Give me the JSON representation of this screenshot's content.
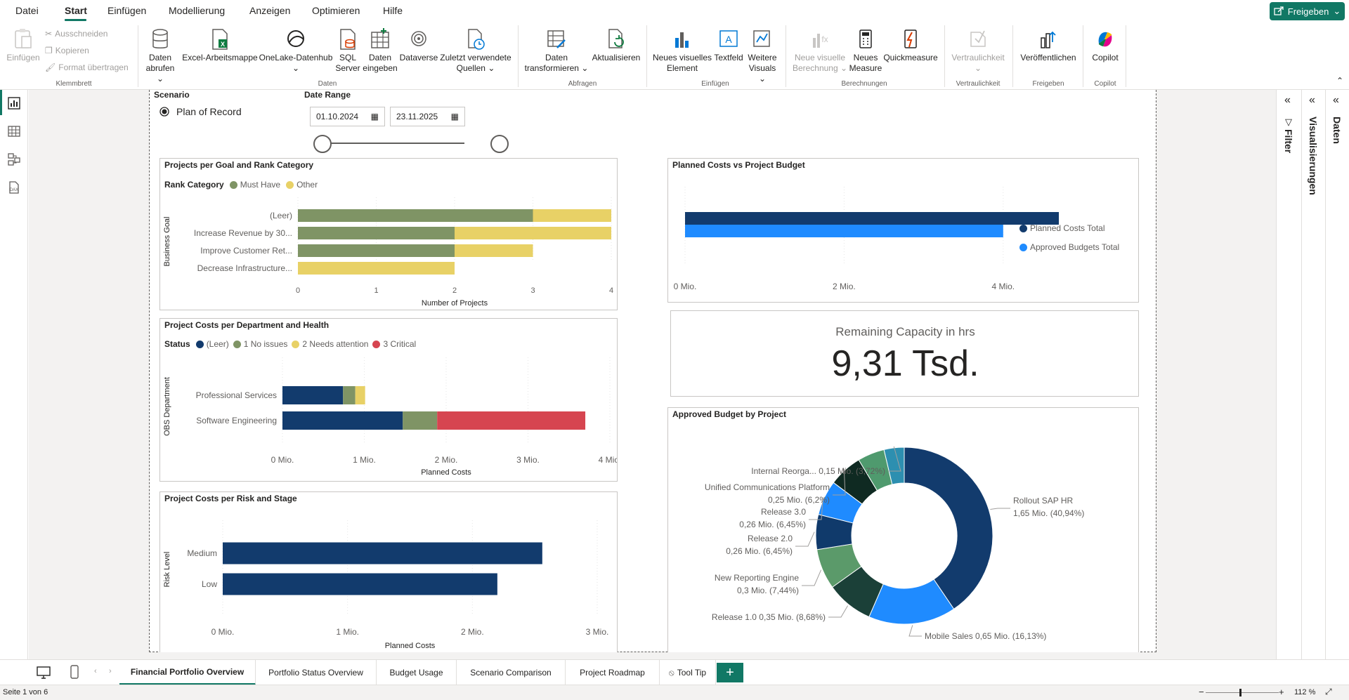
{
  "menu": {
    "items": [
      "Datei",
      "Start",
      "Einfügen",
      "Modellierung",
      "Anzeigen",
      "Optimieren",
      "Hilfe"
    ],
    "active": "Start",
    "share_label": "Freigeben"
  },
  "ribbon": {
    "clipboard": {
      "paste": "Einfügen",
      "cut": "Ausschneiden",
      "copy": "Kopieren",
      "format_painter": "Format übertragen",
      "group": "Klemmbrett"
    },
    "data": {
      "get_data_1": "Daten",
      "get_data_2": "abrufen",
      "excel": "Excel-Arbeitsmappe",
      "onelake": "OneLake-Datenhub",
      "sql_1": "SQL",
      "sql_2": "Server",
      "enter_1": "Daten",
      "enter_2": "eingeben",
      "dataverse": "Dataverse",
      "recent_1": "Zuletzt verwendete",
      "recent_2": "Quellen",
      "group": "Daten"
    },
    "queries": {
      "transform_1": "Daten",
      "transform_2": "transformieren",
      "refresh": "Aktualisieren",
      "group": "Abfragen"
    },
    "insert": {
      "new_visual_1": "Neues visuelles",
      "new_visual_2": "Element",
      "textbox": "Textfeld",
      "more_1": "Weitere",
      "more_2": "Visuals",
      "group": "Einfügen"
    },
    "calc": {
      "new_calc_1": "Neue visuelle",
      "new_calc_2": "Berechnung",
      "new_measure_1": "Neues",
      "new_measure_2": "Measure",
      "quick": "Quickmeasure",
      "group": "Berechnungen"
    },
    "sensitivity": {
      "label": "Vertraulichkeit",
      "group": "Vertraulichkeit"
    },
    "share": {
      "publish": "Veröffentlichen",
      "group": "Freigeben"
    },
    "copilot": {
      "label": "Copilot",
      "group": "Copilot"
    }
  },
  "slicers": {
    "scenario_title": "Scenario",
    "scenario_option": "Plan of Record",
    "date_title": "Date Range",
    "date_from": "01.10.2024",
    "date_to": "23.11.2025"
  },
  "chart_data": [
    {
      "id": "goal",
      "type": "bar",
      "title": "Projects per Goal and Rank Category",
      "legend_title": "Rank Category",
      "categories": [
        "(Leer)",
        "Increase Revenue by 30...",
        "Improve Customer Ret...",
        "Decrease Infrastructure..."
      ],
      "series": [
        {
          "name": "Must Have",
          "color": "#7f9465",
          "values": [
            3,
            2,
            2,
            0
          ]
        },
        {
          "name": "Other",
          "color": "#e8d166",
          "values": [
            1,
            2,
            1,
            2
          ]
        }
      ],
      "xlabel": "Number of Projects",
      "ylabel": "Business Goal",
      "xlim": [
        0,
        4
      ],
      "xticks": [
        "0",
        "1",
        "2",
        "3",
        "4"
      ]
    },
    {
      "id": "dept",
      "type": "bar",
      "title": "Project Costs per Department and Health",
      "legend_title": "Status",
      "categories": [
        "Professional Services",
        "Software Engineering"
      ],
      "series": [
        {
          "name": "(Leer)",
          "color": "#123b6d",
          "values": [
            0.74,
            1.47
          ]
        },
        {
          "name": "1 No issues",
          "color": "#7f9465",
          "values": [
            0.15,
            0.42
          ]
        },
        {
          "name": "2 Needs attention",
          "color": "#e8d166",
          "values": [
            0.12,
            0
          ]
        },
        {
          "name": "3 Critical",
          "color": "#d64550",
          "values": [
            0,
            1.81
          ]
        }
      ],
      "xlabel": "Planned Costs",
      "ylabel": "OBS Department",
      "xlim": [
        0,
        4
      ],
      "xticks": [
        "0 Mio.",
        "1 Mio.",
        "2 Mio.",
        "3 Mio.",
        "4 Mio."
      ]
    },
    {
      "id": "risk",
      "type": "bar",
      "title": "Project Costs per Risk and Stage",
      "categories": [
        "Medium",
        "Low"
      ],
      "series": [
        {
          "name": "",
          "color": "#123b6d",
          "values": [
            2.56,
            2.2
          ]
        }
      ],
      "xlabel": "Planned Costs",
      "ylabel": "Risk Level",
      "xlim": [
        0,
        3
      ],
      "xticks": [
        "0 Mio.",
        "1 Mio.",
        "2 Mio.",
        "3 Mio."
      ]
    },
    {
      "id": "budget",
      "type": "bar",
      "title": "Planned Costs vs Project Budget",
      "categories": [
        ""
      ],
      "series": [
        {
          "name": "Planned Costs Total",
          "color": "#123b6d",
          "values": [
            4.7
          ]
        },
        {
          "name": "Approved Budgets Total",
          "color": "#1f8bff",
          "values": [
            4.0
          ]
        }
      ],
      "xlim": [
        0,
        5
      ],
      "xticks": [
        "0 Mio.",
        "2 Mio.",
        "4 Mio."
      ],
      "xtick_values": [
        0,
        2,
        4
      ]
    },
    {
      "id": "donut",
      "type": "pie",
      "title": "Approved Budget by Project",
      "slices": [
        {
          "label": "Rollout SAP HR",
          "value": 1.65,
          "pct": "40,94%",
          "text": "1,65 Mio. (40,94%)",
          "color": "#123b6d"
        },
        {
          "label": "Mobile Sales",
          "value": 0.65,
          "pct": "16,13%",
          "text": "Mobile Sales 0,65 Mio. (16,13%)",
          "color": "#1f8bff"
        },
        {
          "label": "Release 1.0",
          "value": 0.35,
          "pct": "8,68%",
          "text": "Release 1.0 0,35 Mio. (8,68%)",
          "color": "#1b4038"
        },
        {
          "label": "New Reporting Engine",
          "value": 0.3,
          "pct": "7,44%",
          "text": "0,3 Mio. (7,44%)",
          "color": "#5b9a6a"
        },
        {
          "label": "Release 2.0",
          "value": 0.26,
          "pct": "6,45%",
          "text": "0,26 Mio. (6,45%)",
          "color": "#103a6b"
        },
        {
          "label": "Release 3.0",
          "value": 0.26,
          "pct": "6,45%",
          "text": "0,26 Mio. (6,45%)",
          "color": "#1f8bff"
        },
        {
          "label": "Unified Communications Platform",
          "value": 0.25,
          "pct": "6,2%",
          "text": "0,25 Mio. (6,2%)",
          "color": "#0f2a22"
        },
        {
          "label": "Internal Reorga...",
          "value": 0.2,
          "pct": "",
          "text": "",
          "color": "#4f9a6e"
        },
        {
          "label": "Internal Reorga...",
          "value": 0.15,
          "pct": "3,72%",
          "text": "0,15 Mio. (3,72%)",
          "color": "#2d8fb0"
        }
      ]
    }
  ],
  "card": {
    "label": "Remaining Capacity in hrs",
    "value": "9,31 Tsd."
  },
  "panes": {
    "filter": "Filter",
    "visualizations": "Visualisierungen",
    "data": "Daten"
  },
  "tabs": [
    {
      "label": "Financial Portfolio Overview",
      "active": true
    },
    {
      "label": "Portfolio Status Overview",
      "active": false
    },
    {
      "label": "Budget Usage",
      "active": false
    },
    {
      "label": "Scenario Comparison",
      "active": false
    },
    {
      "label": "Project Roadmap",
      "active": false
    },
    {
      "label": "Tool Tip",
      "active": false
    }
  ],
  "status": {
    "page": "Seite 1 von 6",
    "zoom": "112 %"
  }
}
